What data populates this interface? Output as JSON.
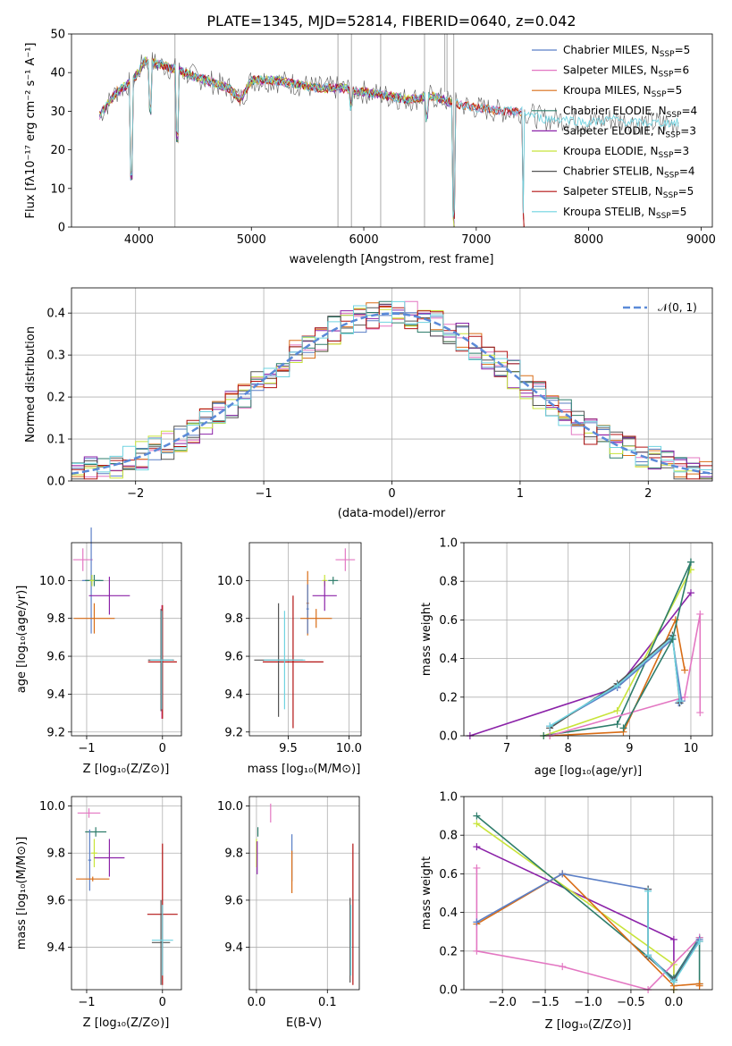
{
  "colors": {
    "chabrier_miles": "#5b7fc6",
    "salpeter_miles": "#e377c2",
    "kroupa_miles": "#d96d16",
    "chabrier_elodie": "#2e7d6b",
    "salpeter_elodie": "#8b22a8",
    "kroupa_elodie": "#c8e43a",
    "chabrier_stelib": "#555555",
    "salpeter_stelib": "#b31212",
    "kroupa_stelib": "#6fd3e0",
    "normal_curve": "#5b8ad8"
  },
  "chart_data": [
    {
      "id": "spectrum",
      "type": "line",
      "title": "PLATE=1345, MJD=52814, FIBERID=0640, z=0.042",
      "xlabel": "wavelength [Angstrom, rest frame]",
      "ylabel": "Flux [fλ10⁻¹⁷ erg cm⁻² s⁻¹ A⁻¹]",
      "xlim": [
        3400,
        9100
      ],
      "ylim": [
        0,
        50
      ],
      "xticks": [
        "4000",
        "5000",
        "6000",
        "7000",
        "8000",
        "9000"
      ],
      "yticks": [
        "0",
        "10",
        "20",
        "30",
        "40",
        "50"
      ],
      "legend_position": "top-right",
      "legend": [
        {
          "pre": "Chabrier MILES, N",
          "sub": "SSP",
          "post": "=5",
          "color_key": "chabrier_miles"
        },
        {
          "pre": "Salpeter MILES, N",
          "sub": "SSP",
          "post": "=6",
          "color_key": "salpeter_miles"
        },
        {
          "pre": "Kroupa MILES, N",
          "sub": "SSP",
          "post": "=5",
          "color_key": "kroupa_miles"
        },
        {
          "pre": "Chabrier ELODIE, N",
          "sub": "SSP",
          "post": "=4",
          "color_key": "chabrier_elodie"
        },
        {
          "pre": "Salpeter ELODIE, N",
          "sub": "SSP",
          "post": "=3",
          "color_key": "salpeter_elodie"
        },
        {
          "pre": "Kroupa ELODIE, N",
          "sub": "SSP",
          "post": "=3",
          "color_key": "kroupa_elodie"
        },
        {
          "pre": "Chabrier STELIB, N",
          "sub": "SSP",
          "post": "=4",
          "color_key": "chabrier_stelib"
        },
        {
          "pre": "Salpeter STELIB, N",
          "sub": "SSP",
          "post": "=5",
          "color_key": "salpeter_stelib"
        },
        {
          "pre": "Kroupa STELIB, N",
          "sub": "SSP",
          "post": "=5",
          "color_key": "kroupa_stelib"
        }
      ],
      "continuum": {
        "x": [
          3650,
          3800,
          3950,
          4050,
          4200,
          4400,
          4600,
          4800,
          4900,
          5000,
          5200,
          5400,
          5600,
          5800,
          6000,
          6200,
          6400,
          6600,
          6800,
          7000,
          7200,
          7400,
          7600,
          7800,
          8000,
          8200,
          8400,
          8600,
          8800
        ],
        "y": [
          29,
          35,
          38,
          43,
          42,
          40,
          38,
          36,
          33,
          38,
          38,
          37,
          36,
          36,
          35,
          34,
          33,
          34,
          32,
          31,
          30,
          30,
          28,
          28,
          27,
          28,
          27,
          27,
          27
        ]
      },
      "absorption_lines": [
        {
          "x": 3934,
          "y": 12
        },
        {
          "x": 4102,
          "y": 29
        },
        {
          "x": 4340,
          "y": 22
        },
        {
          "x": 5890,
          "y": 30
        },
        {
          "x": 6563,
          "y": 27
        },
        {
          "x": 6800,
          "y": 2
        },
        {
          "x": 7420,
          "y": 2
        }
      ],
      "sky_lines": [
        {
          "x": 4320,
          "y1": 0,
          "y2": 50
        },
        {
          "x": 5770,
          "y1": 0,
          "y2": 50
        },
        {
          "x": 5890,
          "y1": 0,
          "y2": 50
        },
        {
          "x": 6150,
          "y1": 0,
          "y2": 50
        },
        {
          "x": 6540,
          "y1": 0,
          "y2": 50
        },
        {
          "x": 6720,
          "y1": 35,
          "y2": 50
        },
        {
          "x": 6740,
          "y1": 35,
          "y2": 50
        },
        {
          "x": 6800,
          "y1": 0,
          "y2": 50
        }
      ]
    },
    {
      "id": "residuals",
      "type": "bar",
      "xlabel": "(data-model)/error",
      "ylabel": "Normed distribution",
      "xlim": [
        -2.5,
        2.5
      ],
      "ylim": [
        0,
        0.46
      ],
      "xticks": [
        "−2",
        "−1",
        "0",
        "1",
        "2"
      ],
      "yticks": [
        "0.0",
        "0.1",
        "0.2",
        "0.3",
        "0.4"
      ],
      "legend_position": "top-right",
      "legend": "𝒩(0, 1)",
      "bin_width": 0.1,
      "bin_start": -2.5
    },
    {
      "id": "age_vs_Z",
      "type": "scatter",
      "xlabel": "Z [log₁₀(Z/Z⊙)]",
      "ylabel": "age  [log₁₀(age/yr)]",
      "xlim": [
        -1.2,
        0.25
      ],
      "ylim": [
        9.18,
        10.2
      ],
      "xticks": [
        "−1",
        "0"
      ],
      "yticks": [
        "9.2",
        "9.4",
        "9.6",
        "9.8",
        "10.0"
      ],
      "points": [
        {
          "x": -1.05,
          "xerr": 0.13,
          "y": 10.11,
          "yerr": 0.06,
          "color_key": "salpeter_miles"
        },
        {
          "x": -0.94,
          "xerr": 0.12,
          "y": 10.0,
          "yerr": 0.28,
          "color_key": "chabrier_miles"
        },
        {
          "x": -0.9,
          "xerr": 0.12,
          "y": 10.0,
          "yerr": 0.03,
          "color_key": "chabrier_elodie"
        },
        {
          "x": -0.93,
          "xerr": 0.03,
          "y": 10.0,
          "yerr": 0.03,
          "color_key": "kroupa_elodie"
        },
        {
          "x": -0.7,
          "xerr": 0.27,
          "y": 9.92,
          "yerr": 0.1,
          "color_key": "salpeter_elodie"
        },
        {
          "x": -0.9,
          "xerr": 0.27,
          "y": 9.8,
          "yerr": 0.08,
          "color_key": "kroupa_miles"
        },
        {
          "x": -0.01,
          "xerr": 0.01,
          "y": 9.57,
          "yerr": 0.3,
          "color_key": "salpeter_miles"
        },
        {
          "x": 0.0,
          "xerr": 0.19,
          "y": 9.57,
          "yerr": 0.3,
          "color_key": "salpeter_stelib"
        },
        {
          "x": -0.02,
          "xerr": 0.17,
          "y": 9.58,
          "yerr": 0.27,
          "color_key": "chabrier_stelib"
        },
        {
          "x": -0.01,
          "xerr": 0.15,
          "y": 9.58,
          "yerr": 0.26,
          "color_key": "kroupa_stelib"
        }
      ]
    },
    {
      "id": "age_vs_mass",
      "type": "scatter",
      "xlabel": "mass [log₁₀(M/M⊙)]",
      "xlim": [
        9.18,
        10.1
      ],
      "ylim": [
        9.18,
        10.2
      ],
      "xticks": [
        "9.5",
        "10.0"
      ],
      "yticks": [
        "9.2",
        "9.4",
        "9.6",
        "9.8",
        "10.0"
      ],
      "points": [
        {
          "x": 9.97,
          "xerr": 0.08,
          "y": 10.11,
          "yerr": 0.06,
          "color_key": "salpeter_miles"
        },
        {
          "x": 9.87,
          "xerr": 0.04,
          "y": 10.0,
          "yerr": 0.02,
          "color_key": "chabrier_elodie"
        },
        {
          "x": 9.8,
          "xerr": 0.02,
          "y": 10.0,
          "yerr": 0.03,
          "color_key": "kroupa_elodie"
        },
        {
          "x": 9.66,
          "xerr": 0.01,
          "y": 9.88,
          "yerr": 0.17,
          "color_key": "kroupa_miles"
        },
        {
          "x": 9.66,
          "xerr": 0.01,
          "y": 9.85,
          "yerr": 0.13,
          "color_key": "chabrier_miles"
        },
        {
          "x": 9.8,
          "xerr": 0.1,
          "y": 9.92,
          "yerr": 0.08,
          "color_key": "salpeter_elodie"
        },
        {
          "x": 9.73,
          "xerr": 0.13,
          "y": 9.8,
          "yerr": 0.05,
          "color_key": "kroupa_miles"
        },
        {
          "x": 9.54,
          "xerr": 0.25,
          "y": 9.57,
          "yerr": 0.35,
          "color_key": "salpeter_stelib"
        },
        {
          "x": 9.42,
          "xerr": 0.2,
          "y": 9.58,
          "yerr": 0.3,
          "color_key": "chabrier_stelib"
        },
        {
          "x": 9.47,
          "xerr": 0.17,
          "y": 9.58,
          "yerr": 0.26,
          "color_key": "kroupa_stelib"
        }
      ]
    },
    {
      "id": "mass_weight_vs_age",
      "type": "line",
      "xlabel": "age  [log₁₀(age/yr)]",
      "ylabel": "mass weight",
      "xlim": [
        6.3,
        10.35
      ],
      "ylim": [
        0,
        1
      ],
      "xticks": [
        "7",
        "8",
        "9",
        "10"
      ],
      "yticks": [
        "0.0",
        "0.2",
        "0.4",
        "0.6",
        "0.8",
        "1.0"
      ],
      "series": [
        {
          "color_key": "salpeter_elodie",
          "x": [
            6.4,
            8.8,
            10.0
          ],
          "y": [
            0.0,
            0.25,
            0.74
          ]
        },
        {
          "color_key": "kroupa_elodie",
          "x": [
            7.6,
            8.8,
            10.0
          ],
          "y": [
            0.0,
            0.13,
            0.86
          ]
        },
        {
          "color_key": "chabrier_elodie",
          "x": [
            7.6,
            8.8,
            10.0
          ],
          "y": [
            0.0,
            0.06,
            0.9
          ]
        },
        {
          "color_key": "kroupa_miles",
          "x": [
            7.7,
            8.9,
            9.75,
            9.9
          ],
          "y": [
            0.0,
            0.02,
            0.6,
            0.34
          ]
        },
        {
          "color_key": "salpeter_miles",
          "x": [
            7.7,
            9.9,
            10.15,
            10.15
          ],
          "y": [
            0.0,
            0.2,
            0.63,
            0.12
          ]
        },
        {
          "color_key": "chabrier_miles",
          "x": [
            7.7,
            8.8,
            9.7,
            9.85,
            9.8
          ],
          "y": [
            0.05,
            0.25,
            0.5,
            0.18,
            0.17
          ]
        },
        {
          "color_key": "chabrier_stelib",
          "x": [
            7.7,
            8.8,
            9.7,
            9.82
          ],
          "y": [
            0.04,
            0.27,
            0.52,
            0.17
          ]
        },
        {
          "color_key": "kroupa_stelib",
          "x": [
            7.7,
            8.8,
            9.7,
            9.82
          ],
          "y": [
            0.05,
            0.26,
            0.51,
            0.18
          ]
        },
        {
          "color_key": "chabrier_elodie",
          "x": [
            8.9,
            9.7,
            10.0
          ],
          "y": [
            0.04,
            0.5,
            0.9
          ]
        }
      ]
    },
    {
      "id": "mass_vs_Z",
      "type": "scatter",
      "xlabel": "Z [log₁₀(Z/Z⊙)]",
      "ylabel": "mass [log₁₀(M/M⊙)]",
      "xlim": [
        -1.2,
        0.25
      ],
      "ylim": [
        9.22,
        10.04
      ],
      "xticks": [
        "−1",
        "0"
      ],
      "yticks": [
        "9.4",
        "9.6",
        "9.8",
        "10.0"
      ],
      "points": [
        {
          "x": -0.97,
          "xerr": 0.15,
          "y": 9.97,
          "yerr": 0.02,
          "color_key": "salpeter_miles"
        },
        {
          "x": -0.88,
          "xerr": 0.14,
          "y": 9.89,
          "yerr": 0.02,
          "color_key": "chabrier_elodie"
        },
        {
          "x": -0.9,
          "xerr": 0.04,
          "y": 9.8,
          "yerr": 0.06,
          "color_key": "kroupa_elodie"
        },
        {
          "x": -0.7,
          "xerr": 0.2,
          "y": 9.78,
          "yerr": 0.08,
          "color_key": "salpeter_elodie"
        },
        {
          "x": -0.96,
          "xerr": 0.02,
          "y": 9.77,
          "yerr": 0.13,
          "color_key": "chabrier_miles"
        },
        {
          "x": -0.92,
          "xerr": 0.22,
          "y": 9.69,
          "yerr": 0.01,
          "color_key": "kroupa_miles"
        },
        {
          "x": 0.0,
          "xerr": 0.2,
          "y": 9.54,
          "yerr": 0.3,
          "color_key": "salpeter_stelib"
        },
        {
          "x": -0.02,
          "xerr": 0.12,
          "y": 9.42,
          "yerr": 0.18,
          "color_key": "chabrier_stelib"
        },
        {
          "x": 0.0,
          "xerr": 0.14,
          "y": 9.43,
          "yerr": 0.15,
          "color_key": "kroupa_stelib"
        }
      ]
    },
    {
      "id": "mass_vs_EBV",
      "type": "scatter",
      "xlabel": "E(B-V)",
      "xlim": [
        -0.01,
        0.145
      ],
      "ylim": [
        9.22,
        10.04
      ],
      "xticks": [
        "0.0",
        "0.1"
      ],
      "yticks": [
        "9.4",
        "9.6",
        "9.8",
        "10.0"
      ],
      "points": [
        {
          "x": 0.02,
          "xerr": 0.0,
          "y": 9.97,
          "yerr": 0.04,
          "color_key": "salpeter_miles"
        },
        {
          "x": 0.002,
          "xerr": 0.0,
          "y": 9.89,
          "yerr": 0.02,
          "color_key": "chabrier_elodie"
        },
        {
          "x": 0.0,
          "xerr": 0.0,
          "y": 9.8,
          "yerr": 0.06,
          "color_key": "kroupa_elodie"
        },
        {
          "x": 0.001,
          "xerr": 0.0,
          "y": 9.78,
          "yerr": 0.07,
          "color_key": "salpeter_elodie"
        },
        {
          "x": 0.05,
          "xerr": 0.0,
          "y": 9.78,
          "yerr": 0.1,
          "color_key": "chabrier_miles"
        },
        {
          "x": 0.05,
          "xerr": 0.0,
          "y": 9.72,
          "yerr": 0.09,
          "color_key": "kroupa_miles"
        },
        {
          "x": 0.136,
          "xerr": 0.0,
          "y": 9.54,
          "yerr": 0.3,
          "color_key": "salpeter_stelib"
        },
        {
          "x": 0.132,
          "xerr": 0.0,
          "y": 9.43,
          "yerr": 0.18,
          "color_key": "chabrier_stelib"
        },
        {
          "x": 0.133,
          "xerr": 0.0,
          "y": 9.43,
          "yerr": 0.15,
          "color_key": "kroupa_stelib"
        }
      ]
    },
    {
      "id": "mass_weight_vs_Z",
      "type": "line",
      "xlabel": "Z [log₁₀(Z/Z⊙)]",
      "ylabel": "mass weight",
      "xlim": [
        -2.45,
        0.45
      ],
      "ylim": [
        0,
        1
      ],
      "xticks": [
        "−2.0",
        "−1.5",
        "−1.0",
        "−0.5",
        "0.0"
      ],
      "yticks": [
        "0.0",
        "0.2",
        "0.4",
        "0.6",
        "0.8",
        "1.0"
      ],
      "series": [
        {
          "color_key": "salpeter_elodie",
          "x": [
            -2.3,
            0.0,
            0.0
          ],
          "y": [
            0.74,
            0.26,
            0.0
          ]
        },
        {
          "color_key": "kroupa_elodie",
          "x": [
            -2.3,
            0.0,
            0.0
          ],
          "y": [
            0.86,
            0.13,
            0.0
          ]
        },
        {
          "color_key": "chabrier_elodie",
          "x": [
            -2.3,
            0.0,
            0.3,
            0.3
          ],
          "y": [
            0.9,
            0.06,
            0.27,
            0.03
          ]
        },
        {
          "color_key": "kroupa_miles",
          "x": [
            -2.3,
            -1.3,
            0.0,
            0.3,
            0.3
          ],
          "y": [
            0.34,
            0.6,
            0.02,
            0.03,
            0.02
          ]
        },
        {
          "color_key": "salpeter_miles",
          "x": [
            -2.3,
            -2.3,
            -1.3,
            -0.3,
            0.3
          ],
          "y": [
            0.63,
            0.2,
            0.12,
            0.0,
            0.27
          ]
        },
        {
          "color_key": "chabrier_miles",
          "x": [
            -2.3,
            -1.3,
            -0.3,
            -0.3,
            0.0,
            0.3
          ],
          "y": [
            0.35,
            0.6,
            0.52,
            0.18,
            0.05,
            0.26
          ]
        },
        {
          "color_key": "chabrier_stelib",
          "x": [
            -0.3,
            -0.3,
            0.0,
            0.3
          ],
          "y": [
            0.52,
            0.17,
            0.05,
            0.25
          ]
        },
        {
          "color_key": "kroupa_stelib",
          "x": [
            -0.3,
            -0.3,
            0.0,
            0.3
          ],
          "y": [
            0.51,
            0.18,
            0.04,
            0.25
          ]
        }
      ]
    }
  ]
}
